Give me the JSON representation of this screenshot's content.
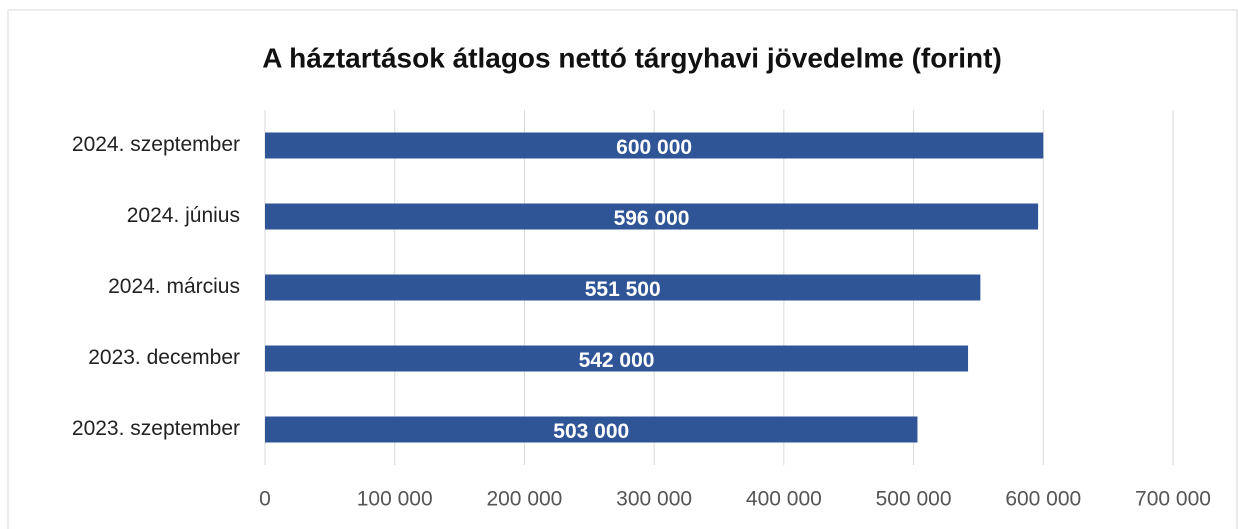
{
  "chart_data": {
    "type": "bar",
    "orientation": "horizontal",
    "title": "A háztartások átlagos nettó tárgyhavi jövedelme (forint)",
    "categories": [
      "2024. szeptember",
      "2024. június",
      "2024. március",
      "2023. december",
      "2023. szeptember"
    ],
    "values": [
      600000,
      596000,
      551500,
      542000,
      503000
    ],
    "value_labels": [
      "600 000",
      "596 000",
      "551 500",
      "542 000",
      "503 000"
    ],
    "color": "#2f5597",
    "xlim": [
      0,
      700000
    ],
    "xticks": [
      0,
      {
        "value": 100000,
        "label": "100 000"
      },
      {
        "value": 200000,
        "label": "200 000"
      },
      {
        "value": 300000,
        "label": "300 000"
      },
      {
        "value": 400000,
        "label": "400 000"
      },
      {
        "value": 500000,
        "label": "500 000"
      },
      {
        "value": 600000,
        "label": "600 000"
      },
      {
        "value": 700000,
        "label": "700 000"
      }
    ],
    "grid": true
  }
}
